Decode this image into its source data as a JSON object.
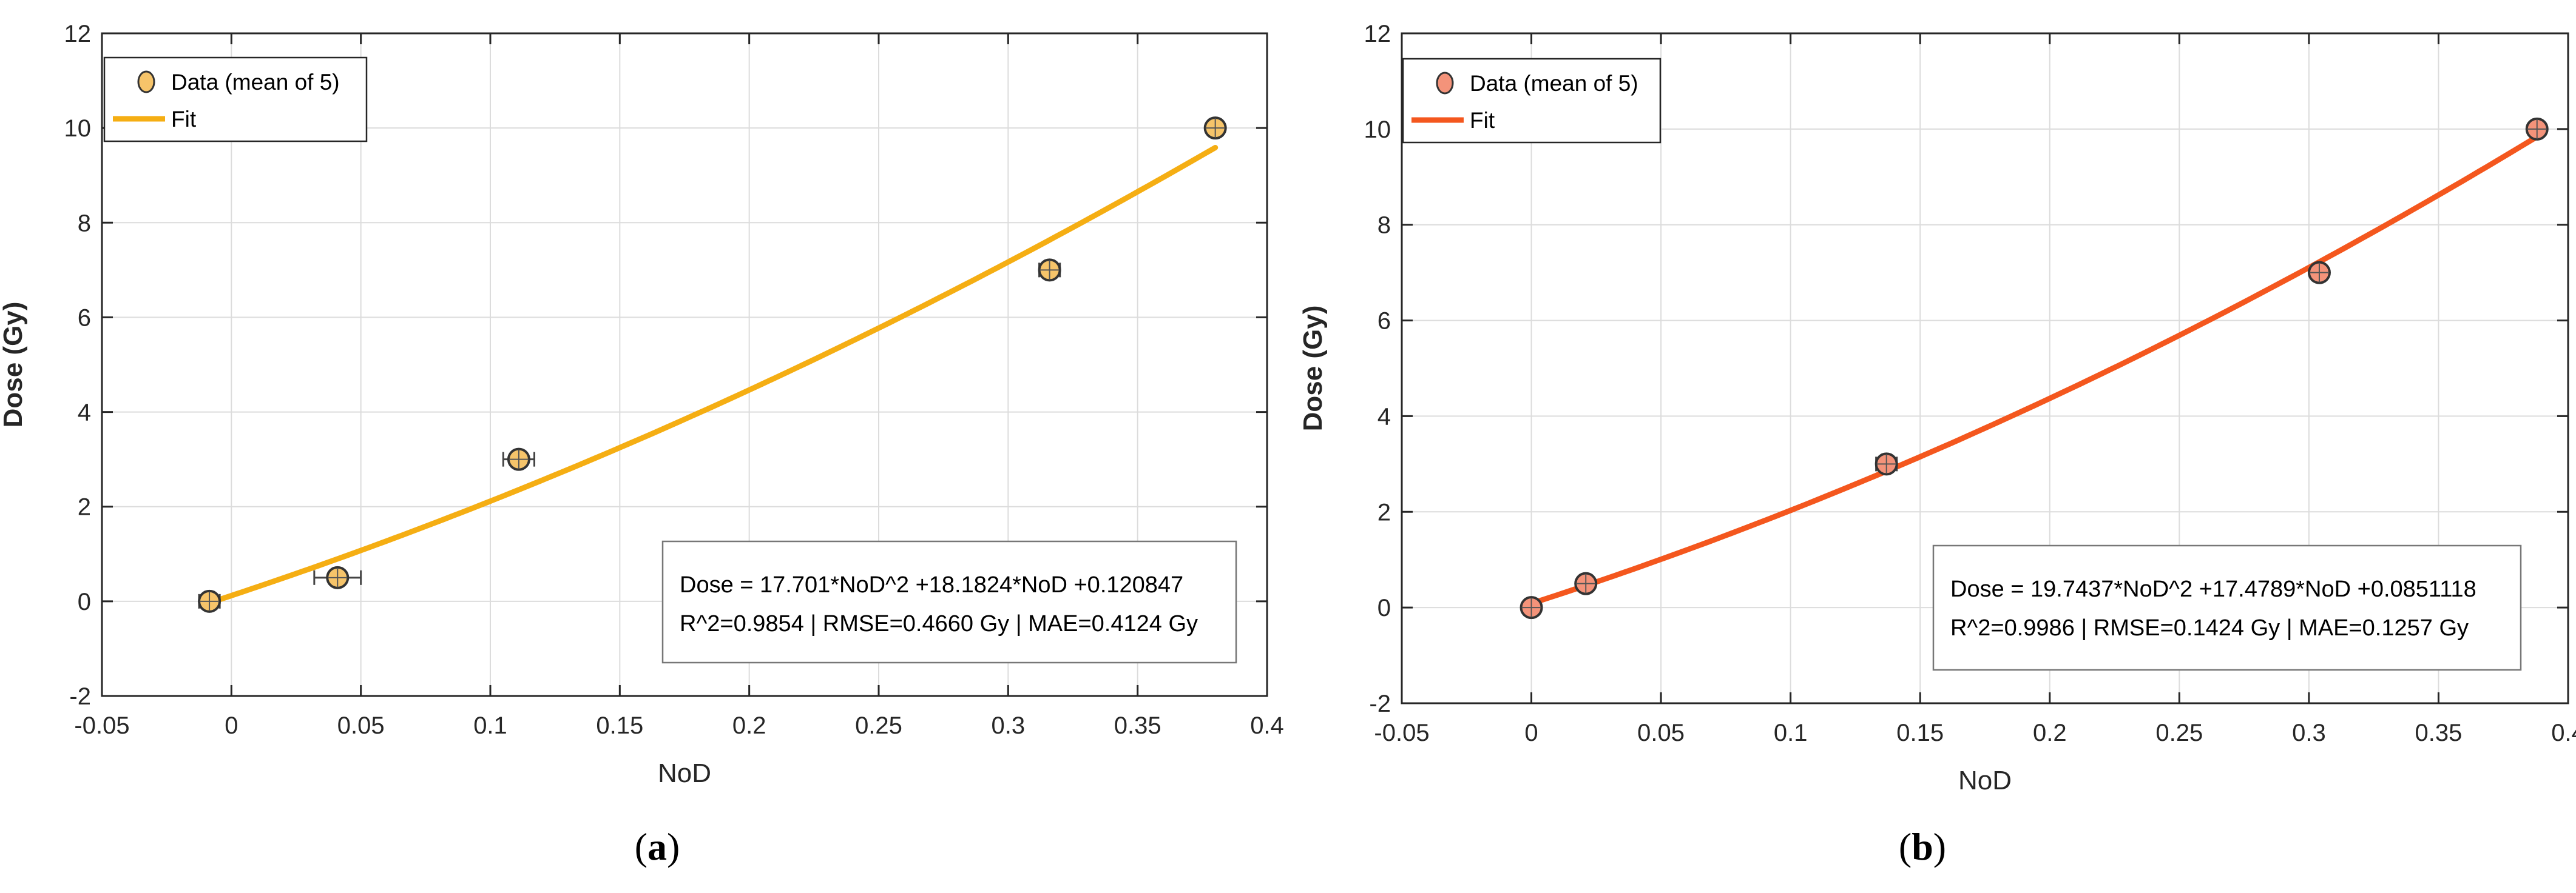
{
  "figure": {
    "label_a": "a",
    "label_b": "b"
  },
  "chart_data": [
    {
      "type": "scatter",
      "panel": "a",
      "title": "",
      "xlabel": "NoD",
      "ylabel": "Dose (Gy)",
      "xlim": [
        -0.05,
        0.4
      ],
      "ylim": [
        -2,
        12
      ],
      "xticks": [
        -0.05,
        0,
        0.05,
        0.1,
        0.15,
        0.2,
        0.25,
        0.3,
        0.35,
        0.4
      ],
      "xtick_labels": [
        "-0.05",
        "0",
        "0.05",
        "0.1",
        "0.15",
        "0.2",
        "0.25",
        "0.3",
        "0.35",
        "0.4"
      ],
      "yticks": [
        -2,
        0,
        2,
        4,
        6,
        8,
        10,
        12
      ],
      "ytick_labels": [
        "-2",
        "0",
        "2",
        "4",
        "6",
        "8",
        "10",
        "12"
      ],
      "grid": true,
      "legend": {
        "placement": "top-left",
        "data_label": "Data (mean of 5)",
        "fit_label": "Fit"
      },
      "series": [
        {
          "name": "Data (mean of 5)",
          "kind": "points",
          "color": "#F6C46A",
          "x": [
            -0.0085,
            0.041,
            0.111,
            0.316,
            0.38
          ],
          "y": [
            0.0,
            0.5,
            3.0,
            7.0,
            10.0
          ],
          "x_err": [
            0.004,
            0.009,
            0.006,
            0.004,
            0.003
          ]
        },
        {
          "name": "Fit",
          "kind": "curve",
          "color": "#F5AE13",
          "coefficients": {
            "a2": 17.701,
            "a1": 18.1824,
            "a0": 0.120847
          },
          "x_range": [
            -0.0085,
            0.38
          ]
        }
      ],
      "annotation": {
        "line1": "Dose = 17.701*NoD^2 +18.1824*NoD +0.120847",
        "line2": "R^2=0.9854 | RMSE=0.4660 Gy | MAE=0.4124 Gy",
        "placement": "bottom-right"
      }
    },
    {
      "type": "scatter",
      "panel": "b",
      "title": "",
      "xlabel": "NoD",
      "ylabel": "Dose (Gy)",
      "xlim": [
        -0.05,
        0.4
      ],
      "ylim": [
        -2,
        12
      ],
      "xticks": [
        -0.05,
        0,
        0.05,
        0.1,
        0.15,
        0.2,
        0.25,
        0.3,
        0.35,
        0.4
      ],
      "xtick_labels": [
        "-0.05",
        "0",
        "0.05",
        "0.1",
        "0.15",
        "0.2",
        "0.25",
        "0.3",
        "0.35",
        "0.4"
      ],
      "yticks": [
        -2,
        0,
        2,
        4,
        6,
        8,
        10,
        12
      ],
      "ytick_labels": [
        "-2",
        "0",
        "2",
        "4",
        "6",
        "8",
        "10",
        "12"
      ],
      "grid": true,
      "legend": {
        "placement": "top-left",
        "data_label": "Data (mean of 5)",
        "fit_label": "Fit"
      },
      "series": [
        {
          "name": "Data (mean of 5)",
          "kind": "points",
          "color": "#F4937A",
          "x": [
            0.0,
            0.021,
            0.137,
            0.304,
            0.388
          ],
          "y": [
            0.0,
            0.5,
            3.0,
            7.0,
            10.0
          ],
          "x_err": [
            0.002,
            0.003,
            0.004,
            0.002,
            0.003
          ]
        },
        {
          "name": "Fit",
          "kind": "curve",
          "color": "#F4571E",
          "coefficients": {
            "a2": 19.7437,
            "a1": 17.4789,
            "a0": 0.0851118
          },
          "x_range": [
            0.0,
            0.388
          ]
        }
      ],
      "annotation": {
        "line1": "Dose = 19.7437*NoD^2 +17.4789*NoD +0.0851118",
        "line2": "R^2=0.9986 | RMSE=0.1424 Gy | MAE=0.1257 Gy",
        "placement": "bottom-right"
      }
    }
  ]
}
